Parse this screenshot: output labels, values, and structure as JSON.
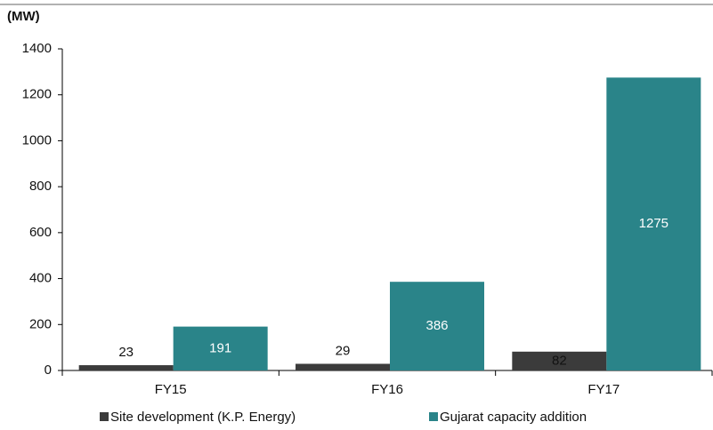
{
  "chart_data": {
    "type": "bar",
    "y_label": "(MW)",
    "categories": [
      "FY15",
      "FY16",
      "FY17"
    ],
    "series": [
      {
        "name": "Site development (K.P. Energy)",
        "color": "#3b3b3b",
        "values": [
          23,
          29,
          82
        ]
      },
      {
        "name": "Gujarat capacity addition",
        "color": "#2a8489",
        "values": [
          191,
          386,
          1275
        ]
      }
    ],
    "ylim": [
      0,
      1400
    ],
    "yticks": [
      0,
      200,
      400,
      600,
      800,
      1000,
      1200,
      1400
    ],
    "grid": false,
    "legend": "bottom"
  }
}
